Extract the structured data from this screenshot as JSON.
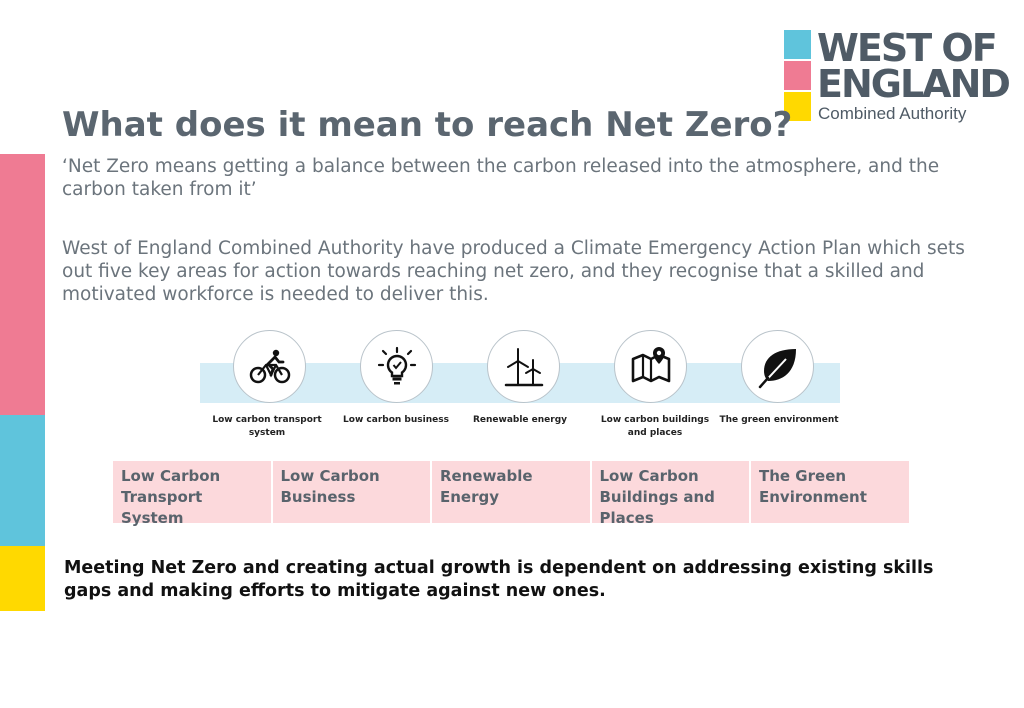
{
  "logo": {
    "line1": "WEST OF",
    "line2": "ENGLAND",
    "line3": "Combined Authority",
    "colors": [
      "#5fc4dc",
      "#ef7b93",
      "#ffd900"
    ]
  },
  "title": "What does it mean to reach Net Zero?",
  "quote": "‘Net Zero means getting a balance between the carbon released into the atmosphere, and the carbon taken from it’",
  "paragraph": "West of England Combined Authority have produced a Climate Emergency Action Plan which sets out five key areas for action towards reaching net zero, and they recognise that a skilled and motivated workforce is needed to deliver this.",
  "icons": [
    {
      "icon": "cyclist-icon",
      "label": "Low carbon transport system"
    },
    {
      "icon": "lightbulb-icon",
      "label": "Low carbon business"
    },
    {
      "icon": "wind-turbine-icon",
      "label": "Renewable energy"
    },
    {
      "icon": "map-pin-icon",
      "label": "Low carbon buildings and places"
    },
    {
      "icon": "leaf-icon",
      "label": "The green environment"
    }
  ],
  "cards": [
    "Low Carbon Transport System",
    "Low Carbon Business",
    "Renewable Energy",
    "Low Carbon Buildings and Places",
    "The Green Environment"
  ],
  "bottom_text": "Meeting Net Zero and creating actual growth is dependent on addressing existing skills gaps and making efforts to mitigate against new ones."
}
